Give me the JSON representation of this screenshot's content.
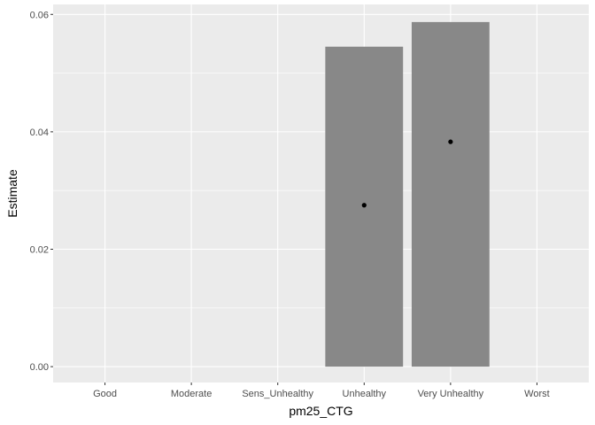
{
  "chart_data": {
    "type": "bar",
    "categories": [
      "Good",
      "Moderate",
      "Sens_Unhealthy",
      "Unhealthy",
      "Very Unhealthy",
      "Worst"
    ],
    "bar_values": [
      null,
      null,
      null,
      0.0545,
      0.0587,
      null
    ],
    "point_values": [
      null,
      null,
      null,
      0.0275,
      0.0383,
      null
    ],
    "xlabel": "pm25_CTG",
    "ylabel": "Estimate",
    "ylim": [
      -0.0027,
      0.0617
    ],
    "yticks": [
      0.0,
      0.02,
      0.04,
      0.06
    ],
    "ytick_labels": [
      "0.00",
      "0.02",
      "0.04",
      "0.06"
    ],
    "grid": true,
    "colors": {
      "panel": "#ebebeb",
      "grid": "#ffffff",
      "bar": "#888888",
      "point": "#000000",
      "tick_text": "#4d4d4d",
      "tick_mark": "#333333"
    }
  }
}
